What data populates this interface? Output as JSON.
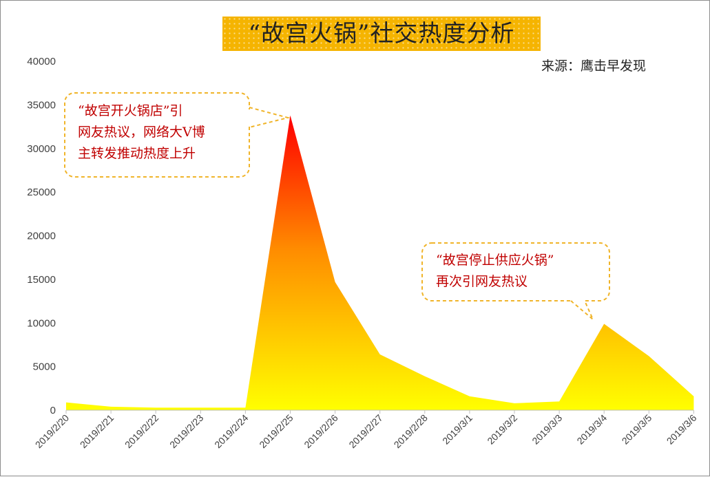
{
  "title": "“故宫火锅”社交热度分析",
  "source": "来源：鹰击早发现",
  "callouts": {
    "first": {
      "lines": [
        "“故宫开火锅店”引",
        "网友热议，网络大V博",
        "主转发推动热度上升"
      ]
    },
    "second": {
      "lines": [
        "“故宫停止供应火锅”",
        "再次引网友热议"
      ]
    }
  },
  "colors": {
    "fill_top": "#ff0000",
    "fill_mid": "#ff8c00",
    "fill_bottom": "#ffff00",
    "title_bg": "#f5b400",
    "callout_border": "#f0b429",
    "callout_text": "#c00000"
  },
  "chart_data": {
    "type": "area",
    "title": "“故宫火锅”社交热度分析",
    "xlabel": "",
    "ylabel": "",
    "x": [
      "2019/2/20",
      "2019/2/21",
      "2019/2/22",
      "2019/2/23",
      "2019/2/24",
      "2019/2/25",
      "2019/2/26",
      "2019/2/27",
      "2019/2/28",
      "2019/3/1",
      "2019/3/2",
      "2019/3/3",
      "2019/3/4",
      "2019/3/5",
      "2019/3/6"
    ],
    "series": [
      {
        "values": [
          900,
          400,
          300,
          300,
          300,
          33800,
          14700,
          6400,
          3900,
          1600,
          800,
          1000,
          9900,
          6200,
          1600
        ]
      }
    ],
    "yticks": [
      "0",
      "5000",
      "10000",
      "15000",
      "20000",
      "25000",
      "30000",
      "35000",
      "40000"
    ],
    "ylim": [
      0,
      40000
    ],
    "grid": false,
    "legend": "none"
  }
}
